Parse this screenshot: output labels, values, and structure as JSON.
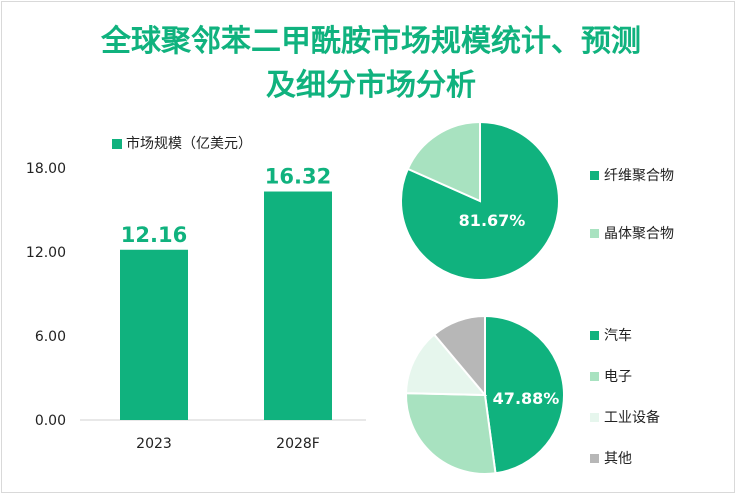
{
  "title_lines": [
    "全球聚邻苯二甲酰胺市场规模统计、预测",
    "及细分市场分析"
  ],
  "colors": {
    "title": "#10b27e",
    "primary": "#10b27e",
    "light_green": "#a8e2c0",
    "pale_green": "#e6f6ed",
    "grey": "#b7b7b7",
    "axis_text": "#222222"
  },
  "chart_data": [
    {
      "type": "bar",
      "legend": "市场规模（亿美元）",
      "categories": [
        "2023",
        "2028F"
      ],
      "values": [
        12.16,
        16.32
      ],
      "value_labels": [
        "12.16",
        "16.32"
      ],
      "y_ticks": [
        "0.00",
        "6.00",
        "12.00",
        "18.00"
      ],
      "ylim": [
        0,
        18
      ],
      "grid": false
    },
    {
      "type": "pie",
      "slices": [
        {
          "name": "纤维聚合物",
          "value": 81.67,
          "color": "#10b27e"
        },
        {
          "name": "晶体聚合物",
          "value": 18.33,
          "color": "#a8e2c0"
        }
      ],
      "label": "81.67%",
      "legend_position": "right"
    },
    {
      "type": "pie",
      "slices": [
        {
          "name": "汽车",
          "value": 47.88,
          "color": "#10b27e"
        },
        {
          "name": "电子",
          "value": 27.5,
          "color": "#a8e2c0"
        },
        {
          "name": "工业设备",
          "value": 13.5,
          "color": "#e6f6ed"
        },
        {
          "name": "其他",
          "value": 11.12,
          "color": "#b7b7b7"
        }
      ],
      "label": "47.88%",
      "legend_position": "right"
    }
  ]
}
